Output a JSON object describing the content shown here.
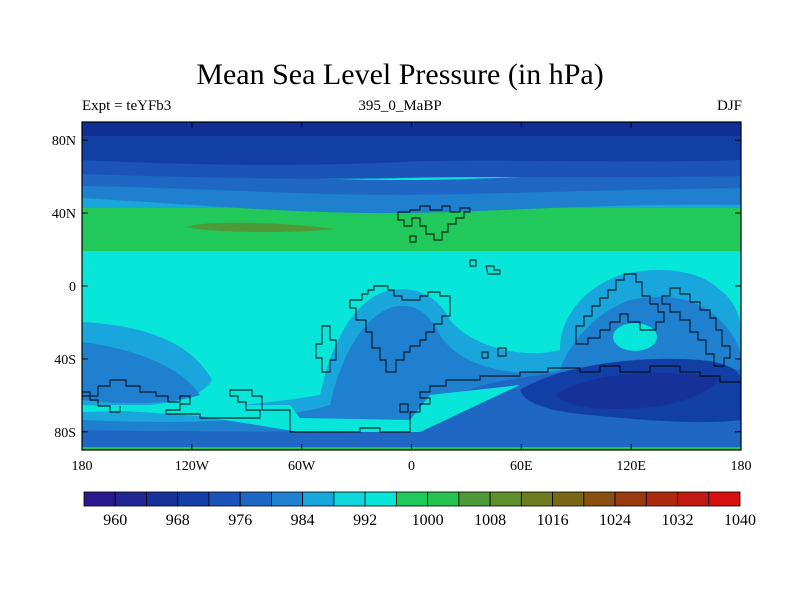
{
  "title": "Mean Sea Level Pressure (in hPa)",
  "left_label": "Expt = teYFb3",
  "center_label": "395_0_MaBP",
  "right_label": "DJF",
  "map": {
    "lon_range": [
      -180,
      180
    ],
    "lat_range": [
      -90,
      90
    ],
    "x_ticks": [
      {
        "value": -180,
        "label": "180"
      },
      {
        "value": -120,
        "label": "120W"
      },
      {
        "value": -60,
        "label": "60W"
      },
      {
        "value": 0,
        "label": "0"
      },
      {
        "value": 60,
        "label": "60E"
      },
      {
        "value": 120,
        "label": "120E"
      },
      {
        "value": 180,
        "label": "180"
      }
    ],
    "y_ticks": [
      {
        "value": 80,
        "label": "80N"
      },
      {
        "value": 40,
        "label": "40N"
      },
      {
        "value": 0,
        "label": "0"
      },
      {
        "value": -40,
        "label": "40S"
      },
      {
        "value": -80,
        "label": "80S"
      }
    ]
  },
  "colorbar": {
    "colors": [
      "#2b1a8f",
      "#1f2794",
      "#17319b",
      "#123fa6",
      "#1b53b8",
      "#1e67c4",
      "#1f80cf",
      "#19a6dc",
      "#0fd8dd",
      "#08e6da",
      "#21c95a",
      "#28c24f",
      "#4f9a38",
      "#5e8f2c",
      "#6c7c1f",
      "#7a6716",
      "#8a4f12",
      "#9a3a0f",
      "#ac2a10",
      "#c01a12",
      "#d8100f"
    ],
    "labels": [
      "960",
      "968",
      "976",
      "984",
      "992",
      "1000",
      "1008",
      "1016",
      "1024",
      "1032",
      "1040"
    ]
  }
}
